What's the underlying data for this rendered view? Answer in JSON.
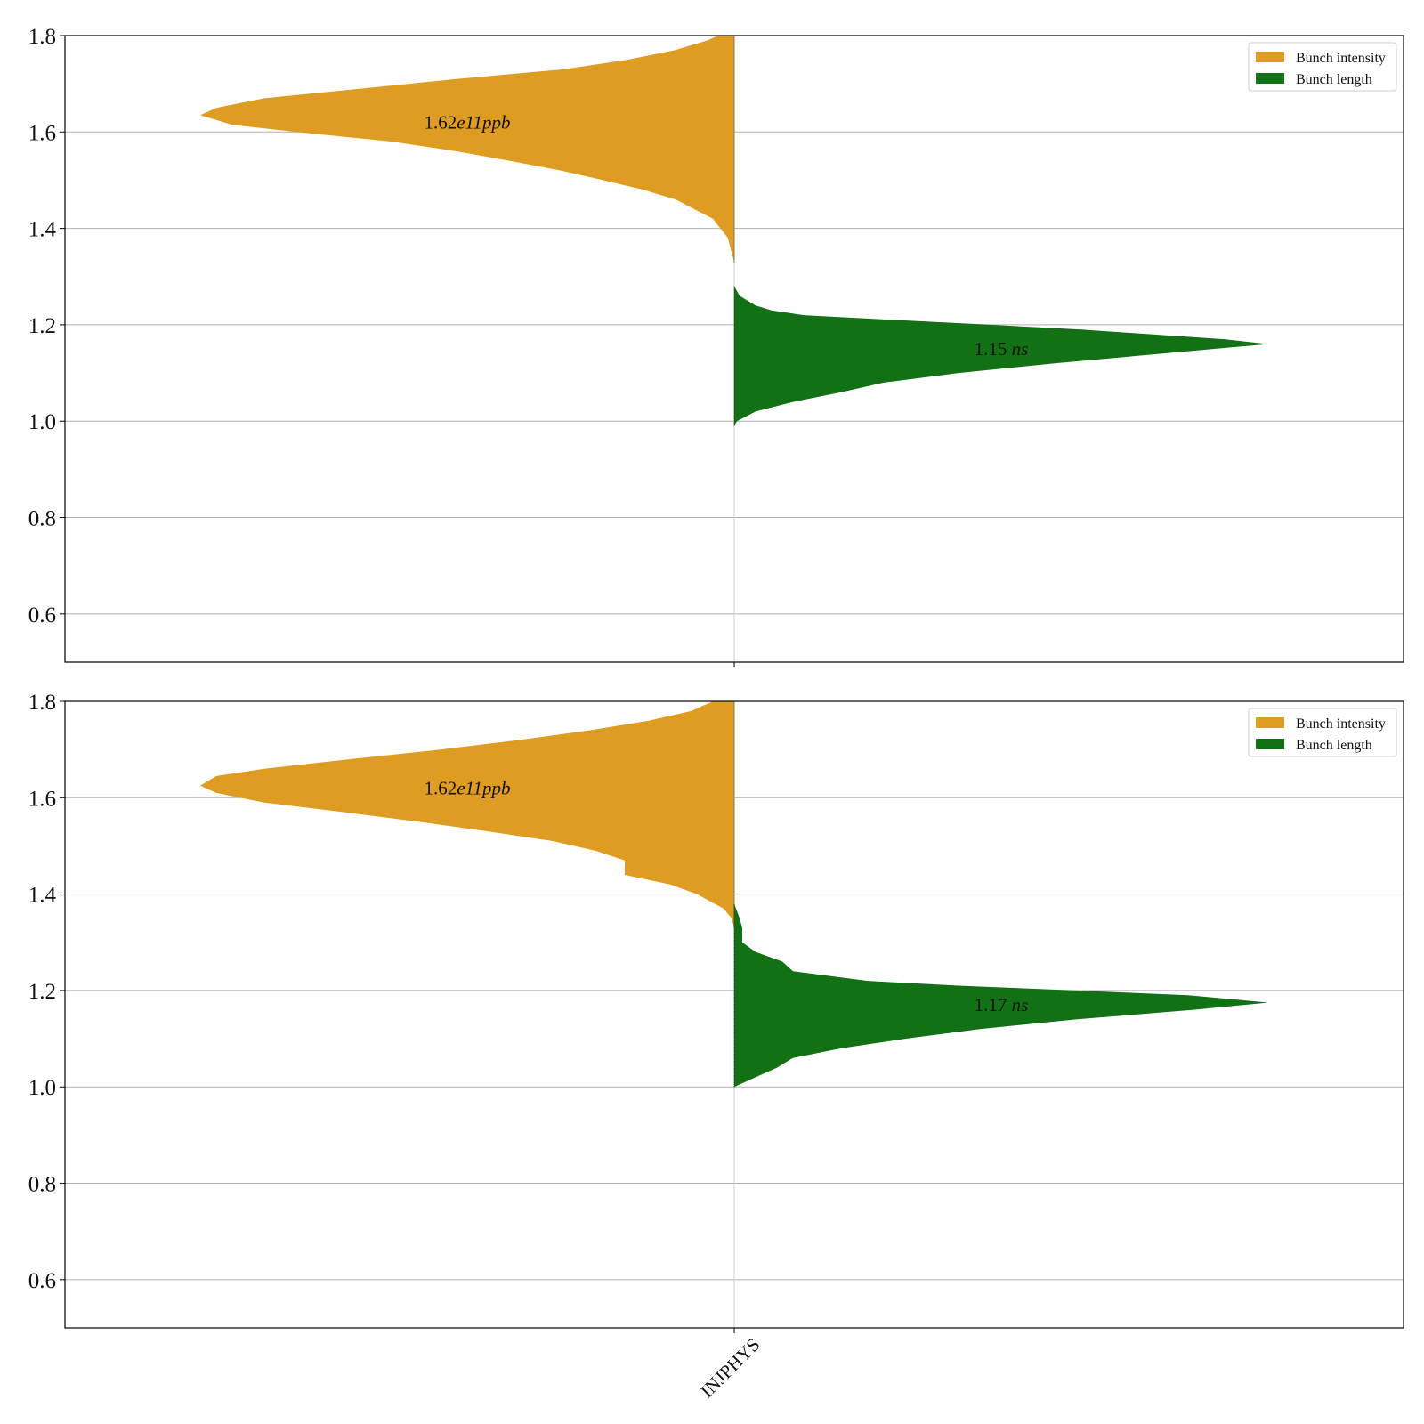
{
  "colors": {
    "intensity": "#DF9C22",
    "length": "#127015",
    "grid": "#b0b0b0",
    "axis": "#000000"
  },
  "x_tick_label": "INJPHYS",
  "chart_data": [
    {
      "type": "violin",
      "categories": [
        "INJPHYS"
      ],
      "ylim": [
        0.5,
        1.8
      ],
      "yticks": [
        "0.6",
        "0.8",
        "1.0",
        "1.2",
        "1.4",
        "1.6",
        "1.8"
      ],
      "grid": true,
      "legend": {
        "placement": "top-right",
        "entries": [
          "Bunch intensity",
          "Bunch length"
        ]
      },
      "series": [
        {
          "name": "Bunch intensity",
          "side": "left",
          "median": 1.62,
          "annotation": {
            "base": "1.62",
            "exp": "e11",
            "unit": "ppb"
          },
          "profile": [
            [
              1.33,
              0.0
            ],
            [
              1.35,
              0.005
            ],
            [
              1.38,
              0.012
            ],
            [
              1.42,
              0.04
            ],
            [
              1.44,
              0.075
            ],
            [
              1.46,
              0.11
            ],
            [
              1.48,
              0.17
            ],
            [
              1.5,
              0.245
            ],
            [
              1.52,
              0.325
            ],
            [
              1.54,
              0.42
            ],
            [
              1.56,
              0.52
            ],
            [
              1.58,
              0.64
            ],
            [
              1.6,
              0.82
            ],
            [
              1.615,
              0.94
            ],
            [
              1.635,
              1.0
            ],
            [
              1.65,
              0.97
            ],
            [
              1.67,
              0.88
            ],
            [
              1.69,
              0.7
            ],
            [
              1.71,
              0.52
            ],
            [
              1.73,
              0.32
            ],
            [
              1.75,
              0.2
            ],
            [
              1.77,
              0.11
            ],
            [
              1.79,
              0.05
            ],
            [
              1.8,
              0.03
            ]
          ]
        },
        {
          "name": "Bunch length",
          "side": "right",
          "median": 1.15,
          "annotation": {
            "base": "1.15",
            "unit": "ns"
          },
          "profile": [
            [
              0.99,
              0.0
            ],
            [
              1.0,
              0.005
            ],
            [
              1.02,
              0.04
            ],
            [
              1.04,
              0.11
            ],
            [
              1.06,
              0.2
            ],
            [
              1.08,
              0.28
            ],
            [
              1.1,
              0.42
            ],
            [
              1.12,
              0.6
            ],
            [
              1.14,
              0.8
            ],
            [
              1.155,
              0.95
            ],
            [
              1.16,
              1.0
            ],
            [
              1.17,
              0.92
            ],
            [
              1.19,
              0.65
            ],
            [
              1.2,
              0.48
            ],
            [
              1.21,
              0.3
            ],
            [
              1.22,
              0.13
            ],
            [
              1.23,
              0.07
            ],
            [
              1.24,
              0.04
            ],
            [
              1.26,
              0.01
            ],
            [
              1.28,
              0.0
            ]
          ]
        }
      ]
    },
    {
      "type": "violin",
      "categories": [
        "INJPHYS"
      ],
      "ylim": [
        0.5,
        1.8
      ],
      "yticks": [
        "0.6",
        "0.8",
        "1.0",
        "1.2",
        "1.4",
        "1.6",
        "1.8"
      ],
      "grid": true,
      "legend": {
        "placement": "top-right",
        "entries": [
          "Bunch intensity",
          "Bunch length"
        ]
      },
      "series": [
        {
          "name": "Bunch intensity",
          "side": "left",
          "median": 1.62,
          "annotation": {
            "base": "1.62",
            "exp": "e11",
            "unit": "ppb"
          },
          "profile": [
            [
              1.33,
              0.0
            ],
            [
              1.35,
              0.005
            ],
            [
              1.37,
              0.02
            ],
            [
              1.4,
              0.07
            ],
            [
              1.42,
              0.12
            ],
            [
              1.44,
              0.205
            ],
            [
              1.47,
              0.205
            ],
            [
              1.49,
              0.26
            ],
            [
              1.51,
              0.34
            ],
            [
              1.53,
              0.46
            ],
            [
              1.55,
              0.59
            ],
            [
              1.57,
              0.73
            ],
            [
              1.59,
              0.88
            ],
            [
              1.61,
              0.97
            ],
            [
              1.625,
              1.0
            ],
            [
              1.645,
              0.97
            ],
            [
              1.66,
              0.88
            ],
            [
              1.68,
              0.72
            ],
            [
              1.7,
              0.55
            ],
            [
              1.72,
              0.4
            ],
            [
              1.74,
              0.27
            ],
            [
              1.76,
              0.16
            ],
            [
              1.78,
              0.08
            ],
            [
              1.8,
              0.04
            ]
          ]
        },
        {
          "name": "Bunch length",
          "side": "right",
          "median": 1.17,
          "annotation": {
            "base": "1.17",
            "unit": "ns"
          },
          "profile": [
            [
              1.0,
              0.0
            ],
            [
              1.02,
              0.04
            ],
            [
              1.04,
              0.08
            ],
            [
              1.06,
              0.11
            ],
            [
              1.08,
              0.2
            ],
            [
              1.1,
              0.32
            ],
            [
              1.12,
              0.46
            ],
            [
              1.14,
              0.64
            ],
            [
              1.16,
              0.86
            ],
            [
              1.175,
              1.0
            ],
            [
              1.19,
              0.85
            ],
            [
              1.2,
              0.64
            ],
            [
              1.21,
              0.42
            ],
            [
              1.22,
              0.25
            ],
            [
              1.24,
              0.11
            ],
            [
              1.26,
              0.09
            ],
            [
              1.28,
              0.04
            ],
            [
              1.3,
              0.015
            ],
            [
              1.33,
              0.015
            ],
            [
              1.35,
              0.01
            ],
            [
              1.38,
              0.0
            ]
          ]
        }
      ]
    }
  ]
}
